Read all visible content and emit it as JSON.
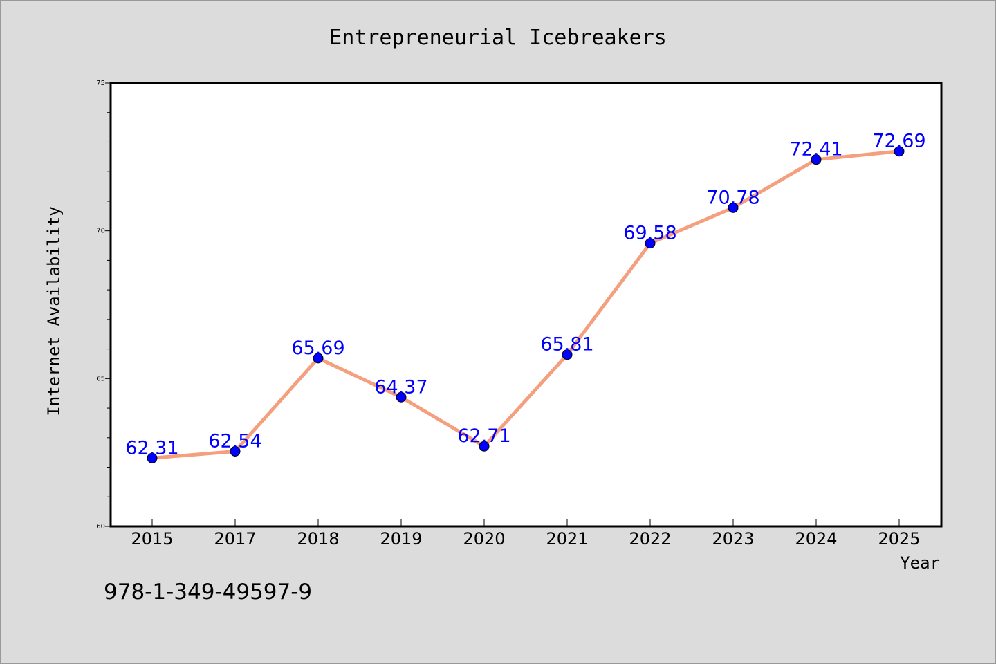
{
  "chart_data": {
    "type": "line",
    "title": "Entrepreneurial Icebreakers",
    "xlabel": "Year",
    "ylabel": "Internet Availability",
    "categories": [
      "2015",
      "2017",
      "2018",
      "2019",
      "2020",
      "2021",
      "2022",
      "2023",
      "2024",
      "2025"
    ],
    "series": [
      {
        "values": [
          62.31,
          62.54,
          65.69,
          64.37,
          62.71,
          65.81,
          69.58,
          70.78,
          72.41,
          72.69
        ],
        "data_labels": [
          "62.31",
          "62.54",
          "65.69",
          "64.37",
          "62.71",
          "65.81",
          "69.58",
          "70.78",
          "72.41",
          "72.69"
        ]
      }
    ],
    "ylim": [
      60,
      75
    ],
    "yticks": [
      "60",
      "65",
      "70",
      "75"
    ],
    "grid": false,
    "legend": "none",
    "colors": {
      "line": "#F4A07E",
      "marker": "#0000FF",
      "data_label": "#0000FF",
      "background": "#DCDCDC",
      "plot_background": "#FFFFFF"
    }
  },
  "annotation": "978-1-349-49597-9"
}
